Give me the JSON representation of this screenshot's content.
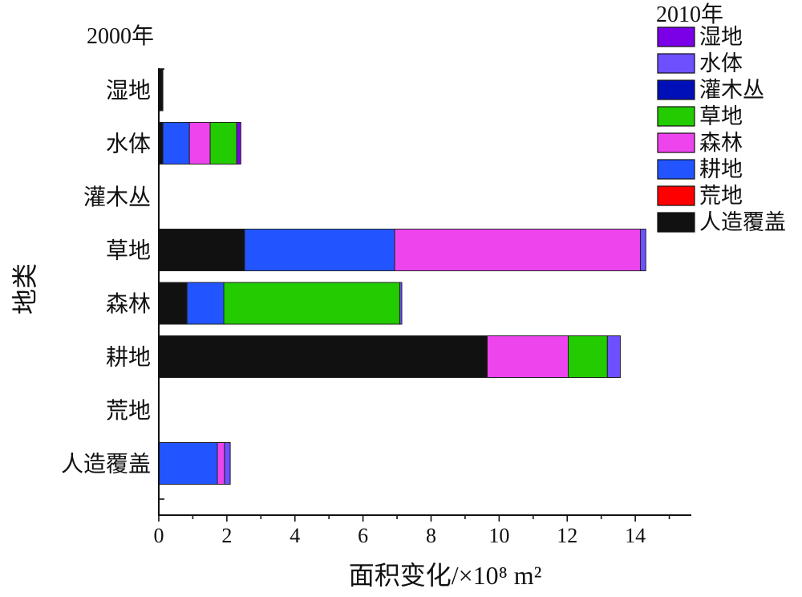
{
  "chart_data": {
    "type": "bar",
    "orientation": "horizontal",
    "stacked": true,
    "y_group_label": "2000年",
    "legend_title": "2010年",
    "xlabel": "面积变化/×10⁸ m²",
    "ylabel": "地类",
    "xlim": [
      0,
      15.6
    ],
    "xticks": [
      0,
      2,
      4,
      6,
      8,
      10,
      12,
      14
    ],
    "grid": false,
    "legend_position": "top-right",
    "categories": [
      "湿地",
      "水体",
      "灌木丛",
      "草地",
      "森林",
      "耕地",
      "荒地",
      "人造覆盖"
    ],
    "series": [
      {
        "name": "湿地",
        "color": "#7b00e8",
        "values": [
          0,
          0.12,
          0,
          0,
          0,
          0,
          0,
          0
        ]
      },
      {
        "name": "水体",
        "color": "#6e50ff",
        "values": [
          0,
          0,
          0,
          0.16,
          0.06,
          0.38,
          0,
          0.17
        ]
      },
      {
        "name": "灌木丛",
        "color": "#0010b8",
        "values": [
          0,
          0,
          0,
          0,
          0,
          0,
          0,
          0
        ]
      },
      {
        "name": "草地",
        "color": "#22cc00",
        "values": [
          0,
          0.78,
          0,
          0,
          5.17,
          1.15,
          0,
          0
        ]
      },
      {
        "name": "森林",
        "color": "#ee44ee",
        "values": [
          0,
          0.61,
          0,
          7.22,
          0,
          2.38,
          0,
          0.21
        ]
      },
      {
        "name": "耕地",
        "color": "#2255ff",
        "values": [
          0,
          0.78,
          0,
          4.41,
          1.08,
          0,
          0,
          1.72
        ]
      },
      {
        "name": "荒地",
        "color": "#ff0000",
        "values": [
          0,
          0,
          0,
          0,
          0,
          0,
          0,
          0
        ]
      },
      {
        "name": "人造覆盖",
        "color": "#111111",
        "values": [
          0.12,
          0.12,
          0,
          2.52,
          0.83,
          9.65,
          0,
          0
        ]
      }
    ]
  }
}
